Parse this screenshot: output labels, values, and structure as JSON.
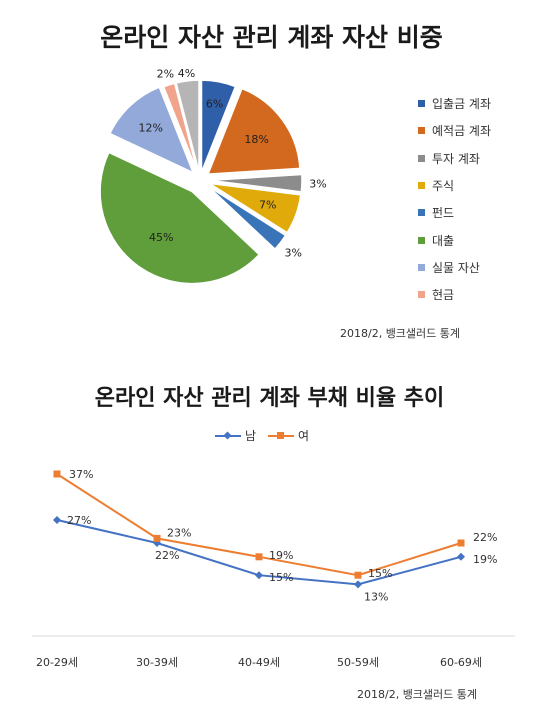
{
  "pie_title": "온라인 자산 관리 계좌 자산 비중",
  "pie_source": "2018/2, 뱅크샐러드 통계",
  "line_title": "온라인 자산 관리 계좌 부채 비율 추이",
  "line_source": "2018/2, 뱅크샐러드 통계",
  "chart_data": [
    {
      "type": "pie",
      "title": "온라인 자산 관리 계좌 자산 비중",
      "categories": [
        "입출금 계좌",
        "예적금 계좌",
        "투자 계좌",
        "주식",
        "펀드",
        "대출",
        "실물 자산",
        "현금"
      ],
      "values": [
        6,
        18,
        3,
        7,
        3,
        45,
        12,
        2
      ],
      "value_labels": [
        "6%",
        "18%",
        "3%",
        "7%",
        "3%",
        "45%",
        "12%",
        "2%"
      ],
      "extra_slice": {
        "value": 4,
        "label": "4%",
        "color": "#b5b5b5"
      },
      "colors": [
        "#2f5fa8",
        "#d2691e",
        "#8c8c8c",
        "#e0ab0a",
        "#3a74b8",
        "#5f9e3a",
        "#93a9d9",
        "#f0a48c"
      ],
      "legend_position": "right"
    },
    {
      "type": "line",
      "title": "온라인 자산 관리 계좌 부채 비율 추이",
      "categories": [
        "20-29세",
        "30-39세",
        "40-49세",
        "50-59세",
        "60-69세"
      ],
      "series": [
        {
          "name": "남",
          "values": [
            27,
            22,
            15,
            13,
            19
          ],
          "labels": [
            "27%",
            "22%",
            "15%",
            "13%",
            "19%"
          ],
          "color": "#4472c4"
        },
        {
          "name": "여",
          "values": [
            37,
            23,
            19,
            15,
            22
          ],
          "labels": [
            "37%",
            "23%",
            "19%",
            "15%",
            "22%"
          ],
          "color": "#ed7d31"
        }
      ],
      "legend_position": "top"
    }
  ]
}
